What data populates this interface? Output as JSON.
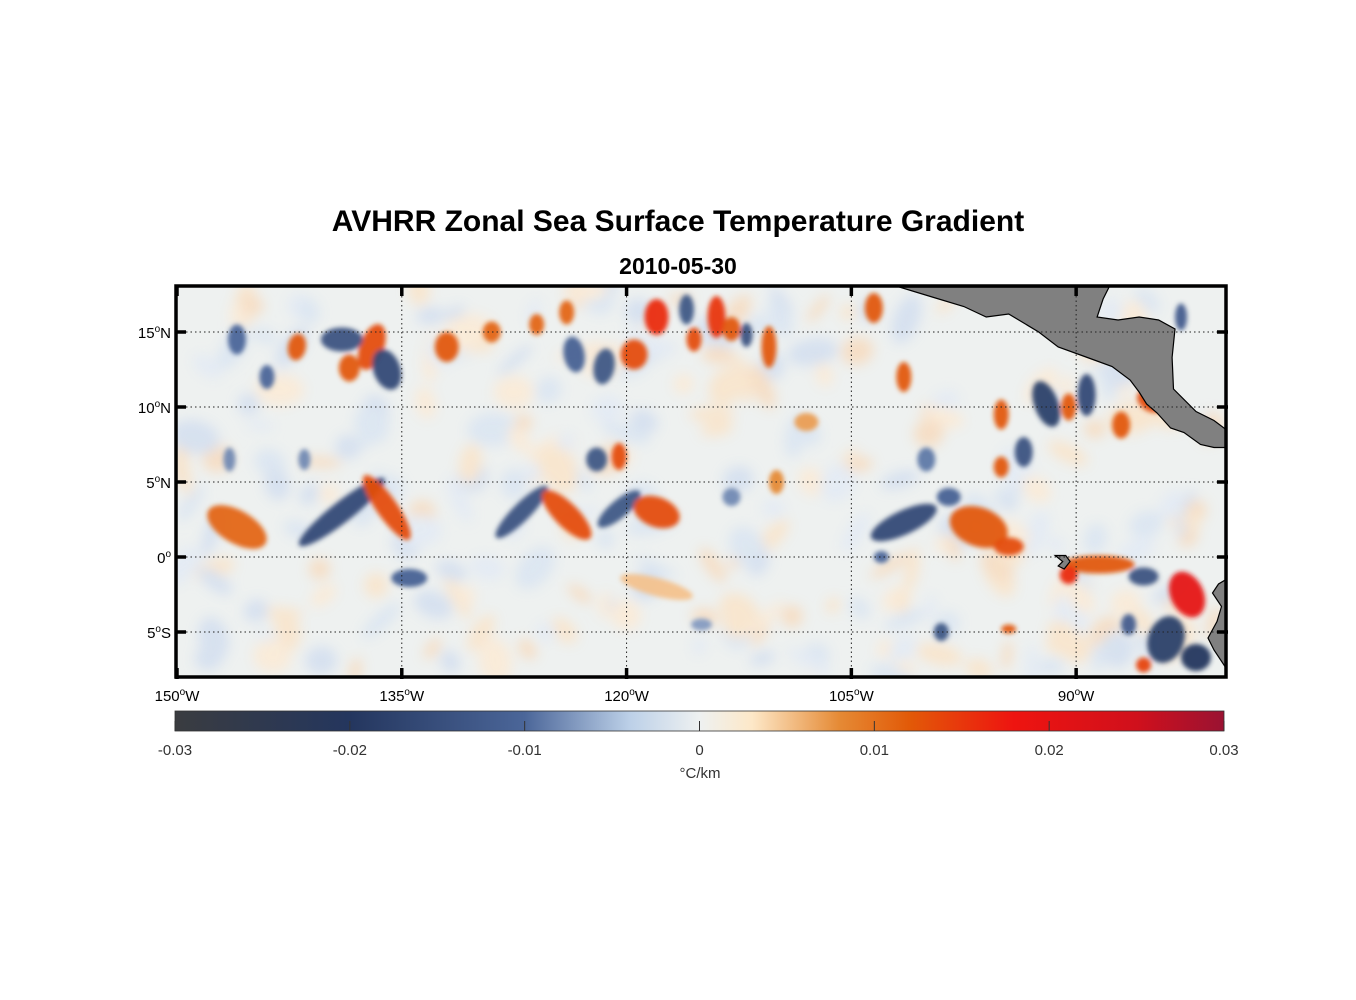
{
  "title": "AVHRR Zonal Sea Surface Temperature Gradient",
  "subtitle": "2010-05-30",
  "axes": {
    "lon_ticks": [
      {
        "value": -150,
        "num": "150",
        "hemi": "W"
      },
      {
        "value": -135,
        "num": "135",
        "hemi": "W"
      },
      {
        "value": -120,
        "num": "120",
        "hemi": "W"
      },
      {
        "value": -105,
        "num": "105",
        "hemi": "W"
      },
      {
        "value": -90,
        "num": "90",
        "hemi": "W"
      }
    ],
    "lat_ticks": [
      {
        "value": 15,
        "num": "15",
        "hemi": "N"
      },
      {
        "value": 10,
        "num": "10",
        "hemi": "N"
      },
      {
        "value": 5,
        "num": "5",
        "hemi": "N"
      },
      {
        "value": 0,
        "num": "0",
        "hemi": ""
      },
      {
        "value": -5,
        "num": "5",
        "hemi": "S"
      }
    ],
    "lon_range": [
      -150,
      -80
    ],
    "lat_range": [
      -8,
      18
    ],
    "grid": true
  },
  "colorbar": {
    "range": [
      -0.03,
      0.03
    ],
    "tick_values": [
      -0.03,
      -0.02,
      -0.01,
      0,
      0.01,
      0.02,
      0.03
    ],
    "tick_labels": [
      "-0.03",
      "-0.02",
      "-0.01",
      "0",
      "0.01",
      "0.02",
      "0.03"
    ],
    "unit_label": "°C/km",
    "colors": [
      {
        "v": -0.03,
        "c": "#3a3c40"
      },
      {
        "v": -0.02,
        "c": "#24365e"
      },
      {
        "v": -0.01,
        "c": "#4b6699"
      },
      {
        "v": -0.004,
        "c": "#bcd0e8"
      },
      {
        "v": 0,
        "c": "#eef1f1"
      },
      {
        "v": 0.003,
        "c": "#fde8c8"
      },
      {
        "v": 0.008,
        "c": "#e58a35"
      },
      {
        "v": 0.012,
        "c": "#e25a08"
      },
      {
        "v": 0.018,
        "c": "#ee1410"
      },
      {
        "v": 0.025,
        "c": "#d0101c"
      },
      {
        "v": 0.03,
        "c": "#9a1232"
      }
    ]
  },
  "land_color": "#808080",
  "features": [
    {
      "lon": -146,
      "lat": 2,
      "v": 0.011,
      "rx": 2.2,
      "ry": 1.1,
      "rot": 30
    },
    {
      "lon": -139,
      "lat": 3,
      "v": -0.016,
      "rx": 3.6,
      "ry": 0.7,
      "rot": -38
    },
    {
      "lon": -136,
      "lat": 3.3,
      "v": 0.013,
      "rx": 2.6,
      "ry": 0.7,
      "rot": 55
    },
    {
      "lon": -137,
      "lat": 14,
      "v": 0.013,
      "rx": 0.8,
      "ry": 1.6,
      "rot": 20
    },
    {
      "lon": -139,
      "lat": 14.5,
      "v": -0.014,
      "rx": 1.4,
      "ry": 0.8,
      "rot": 0
    },
    {
      "lon": -136,
      "lat": 12.5,
      "v": -0.016,
      "rx": 0.9,
      "ry": 1.4,
      "rot": -20
    },
    {
      "lon": -142,
      "lat": 14,
      "v": 0.012,
      "rx": 0.6,
      "ry": 0.9,
      "rot": 10
    },
    {
      "lon": -138.5,
      "lat": 12.6,
      "v": 0.012,
      "rx": 0.7,
      "ry": 0.9,
      "rot": 0
    },
    {
      "lon": -127,
      "lat": 3,
      "v": -0.014,
      "rx": 2.4,
      "ry": 0.6,
      "rot": -45
    },
    {
      "lon": -124,
      "lat": 2.8,
      "v": 0.013,
      "rx": 2.2,
      "ry": 0.8,
      "rot": 45
    },
    {
      "lon": -120.5,
      "lat": 3.2,
      "v": -0.013,
      "rx": 1.8,
      "ry": 0.6,
      "rot": -40
    },
    {
      "lon": -118,
      "lat": 3,
      "v": 0.013,
      "rx": 1.6,
      "ry": 1.0,
      "rot": 20
    },
    {
      "lon": -122,
      "lat": 6.5,
      "v": -0.013,
      "rx": 0.7,
      "ry": 0.8,
      "rot": 0
    },
    {
      "lon": -120.5,
      "lat": 6.7,
      "v": 0.013,
      "rx": 0.5,
      "ry": 0.9,
      "rot": 0
    },
    {
      "lon": -132,
      "lat": 14,
      "v": 0.012,
      "rx": 0.8,
      "ry": 1.0,
      "rot": 0
    },
    {
      "lon": -129,
      "lat": 15,
      "v": 0.011,
      "rx": 0.6,
      "ry": 0.7,
      "rot": 0
    },
    {
      "lon": -126,
      "lat": 15.5,
      "v": 0.011,
      "rx": 0.5,
      "ry": 0.7,
      "rot": 0
    },
    {
      "lon": -124,
      "lat": 16.3,
      "v": 0.011,
      "rx": 0.5,
      "ry": 0.8,
      "rot": 0
    },
    {
      "lon": -118,
      "lat": 16,
      "v": 0.016,
      "rx": 0.8,
      "ry": 1.2,
      "rot": 0
    },
    {
      "lon": -119.5,
      "lat": 13.5,
      "v": 0.013,
      "rx": 0.9,
      "ry": 1.0,
      "rot": 0
    },
    {
      "lon": -114,
      "lat": 16,
      "v": 0.015,
      "rx": 0.6,
      "ry": 1.4,
      "rot": 0
    },
    {
      "lon": -115.5,
      "lat": 14.5,
      "v": 0.013,
      "rx": 0.5,
      "ry": 0.8,
      "rot": 0
    },
    {
      "lon": -113,
      "lat": 15.2,
      "v": 0.012,
      "rx": 0.6,
      "ry": 0.8,
      "rot": 0
    },
    {
      "lon": -110.5,
      "lat": 14,
      "v": 0.012,
      "rx": 0.5,
      "ry": 1.4,
      "rot": 0
    },
    {
      "lon": -116,
      "lat": 16.5,
      "v": -0.013,
      "rx": 0.5,
      "ry": 1.0,
      "rot": 0
    },
    {
      "lon": -121.5,
      "lat": 12.7,
      "v": -0.013,
      "rx": 0.7,
      "ry": 1.2,
      "rot": 10
    },
    {
      "lon": -123.5,
      "lat": 13.5,
      "v": -0.011,
      "rx": 0.7,
      "ry": 1.2,
      "rot": -10
    },
    {
      "lon": -112,
      "lat": 14.8,
      "v": -0.014,
      "rx": 0.4,
      "ry": 0.8,
      "rot": 0
    },
    {
      "lon": -103.5,
      "lat": 16.6,
      "v": 0.012,
      "rx": 0.6,
      "ry": 1.0,
      "rot": 0
    },
    {
      "lon": -101.5,
      "lat": 12,
      "v": 0.012,
      "rx": 0.5,
      "ry": 1.0,
      "rot": 0
    },
    {
      "lon": -95,
      "lat": 9.5,
      "v": 0.012,
      "rx": 0.5,
      "ry": 1.0,
      "rot": 0
    },
    {
      "lon": -92,
      "lat": 10.2,
      "v": -0.018,
      "rx": 0.8,
      "ry": 1.6,
      "rot": -20
    },
    {
      "lon": -89.3,
      "lat": 10.8,
      "v": -0.016,
      "rx": 0.6,
      "ry": 1.4,
      "rot": 0
    },
    {
      "lon": -90.5,
      "lat": 10,
      "v": 0.012,
      "rx": 0.5,
      "ry": 0.9,
      "rot": 0
    },
    {
      "lon": -93.5,
      "lat": 7,
      "v": -0.014,
      "rx": 0.6,
      "ry": 1.0,
      "rot": 0
    },
    {
      "lon": -95,
      "lat": 6,
      "v": 0.012,
      "rx": 0.5,
      "ry": 0.7,
      "rot": 0
    },
    {
      "lon": -87,
      "lat": 8.8,
      "v": 0.012,
      "rx": 0.6,
      "ry": 0.9,
      "rot": 0
    },
    {
      "lon": -85,
      "lat": 10.4,
      "v": 0.013,
      "rx": 1.0,
      "ry": 0.7,
      "rot": 30
    },
    {
      "lon": -101.5,
      "lat": 2.3,
      "v": -0.016,
      "rx": 2.4,
      "ry": 0.8,
      "rot": -25
    },
    {
      "lon": -96.5,
      "lat": 2,
      "v": 0.012,
      "rx": 2.0,
      "ry": 1.3,
      "rot": 20
    },
    {
      "lon": -94.5,
      "lat": 0.7,
      "v": 0.013,
      "rx": 1.0,
      "ry": 0.6,
      "rot": 0
    },
    {
      "lon": -98.5,
      "lat": 4,
      "v": -0.011,
      "rx": 0.8,
      "ry": 0.6,
      "rot": 0
    },
    {
      "lon": -88.5,
      "lat": -0.5,
      "v": 0.012,
      "rx": 2.4,
      "ry": 0.6,
      "rot": 0
    },
    {
      "lon": -90.5,
      "lat": -1.2,
      "v": 0.016,
      "rx": 0.6,
      "ry": 0.6,
      "rot": 0
    },
    {
      "lon": -85.5,
      "lat": -1.3,
      "v": -0.014,
      "rx": 1.0,
      "ry": 0.6,
      "rot": 0
    },
    {
      "lon": -82.6,
      "lat": -2.5,
      "v": 0.02,
      "rx": 1.1,
      "ry": 1.6,
      "rot": -25
    },
    {
      "lon": -84,
      "lat": -5.5,
      "v": -0.018,
      "rx": 1.2,
      "ry": 1.6,
      "rot": 20
    },
    {
      "lon": -82,
      "lat": -6.7,
      "v": -0.02,
      "rx": 1.0,
      "ry": 0.9,
      "rot": 0
    },
    {
      "lon": -86.5,
      "lat": -4.5,
      "v": -0.012,
      "rx": 0.5,
      "ry": 0.7,
      "rot": 0
    },
    {
      "lon": -85.5,
      "lat": -7.2,
      "v": 0.014,
      "rx": 0.5,
      "ry": 0.5,
      "rot": 0
    },
    {
      "lon": -99,
      "lat": -5,
      "v": -0.013,
      "rx": 0.5,
      "ry": 0.6,
      "rot": 0
    },
    {
      "lon": -94.5,
      "lat": -4.8,
      "v": 0.012,
      "rx": 0.5,
      "ry": 0.3,
      "rot": 0
    },
    {
      "lon": -134.5,
      "lat": -1.4,
      "v": -0.011,
      "rx": 1.2,
      "ry": 0.6,
      "rot": 0
    },
    {
      "lon": -146,
      "lat": 14.5,
      "v": -0.01,
      "rx": 0.6,
      "ry": 1.0,
      "rot": 0
    },
    {
      "lon": -144,
      "lat": 12,
      "v": -0.01,
      "rx": 0.5,
      "ry": 0.8,
      "rot": 0
    },
    {
      "lon": -146.5,
      "lat": 6.5,
      "v": -0.008,
      "rx": 0.4,
      "ry": 0.8,
      "rot": 0
    },
    {
      "lon": -141.5,
      "lat": 6.5,
      "v": -0.008,
      "rx": 0.4,
      "ry": 0.7,
      "rot": 0
    },
    {
      "lon": -110,
      "lat": 5,
      "v": 0.008,
      "rx": 0.5,
      "ry": 0.8,
      "rot": 0
    },
    {
      "lon": -113,
      "lat": 4,
      "v": -0.008,
      "rx": 0.6,
      "ry": 0.6,
      "rot": 0
    },
    {
      "lon": -100,
      "lat": 6.5,
      "v": -0.009,
      "rx": 0.6,
      "ry": 0.8,
      "rot": 0
    },
    {
      "lon": -108,
      "lat": 9,
      "v": 0.007,
      "rx": 0.8,
      "ry": 0.6,
      "rot": 0
    },
    {
      "lon": -115,
      "lat": -4.5,
      "v": -0.007,
      "rx": 0.7,
      "ry": 0.4,
      "rot": 0
    },
    {
      "lon": -118,
      "lat": -2,
      "v": 0.005,
      "rx": 2.5,
      "ry": 0.6,
      "rot": 15
    },
    {
      "lon": -103,
      "lat": 0,
      "v": -0.01,
      "rx": 0.5,
      "ry": 0.4,
      "rot": 0
    },
    {
      "lon": -83,
      "lat": 16,
      "v": -0.012,
      "rx": 0.4,
      "ry": 0.9,
      "rot": 0
    }
  ],
  "land": [
    {
      "name": "central-america",
      "points": [
        [
          -101.8,
          18
        ],
        [
          -99.5,
          17.3
        ],
        [
          -97.5,
          16.7
        ],
        [
          -96,
          16
        ],
        [
          -94.5,
          16.2
        ],
        [
          -92.5,
          15
        ],
        [
          -91.2,
          14
        ],
        [
          -89.8,
          13.5
        ],
        [
          -88.7,
          13.1
        ],
        [
          -87.6,
          12.7
        ],
        [
          -86.4,
          11.8
        ],
        [
          -85.8,
          11
        ],
        [
          -85.3,
          10.2
        ],
        [
          -84.6,
          9.6
        ],
        [
          -83.7,
          8.6
        ],
        [
          -82.8,
          8.3
        ],
        [
          -81.7,
          7.5
        ],
        [
          -80.8,
          7.3
        ],
        [
          -80,
          7.3
        ],
        [
          -80,
          8.5
        ],
        [
          -80.8,
          9.1
        ],
        [
          -82,
          9.7
        ],
        [
          -83.5,
          11.2
        ],
        [
          -83.6,
          13.3
        ],
        [
          -83.4,
          15.2
        ],
        [
          -84.5,
          15.8
        ],
        [
          -85.8,
          16
        ],
        [
          -87.2,
          15.8
        ],
        [
          -88.6,
          16
        ],
        [
          -88.2,
          17.2
        ],
        [
          -87.8,
          18
        ]
      ]
    },
    {
      "name": "south-america",
      "points": [
        [
          -80,
          -1.5
        ],
        [
          -80.5,
          -1.8
        ],
        [
          -80.9,
          -2.4
        ],
        [
          -80.3,
          -3.3
        ],
        [
          -80.6,
          -4.3
        ],
        [
          -81.2,
          -5.4
        ],
        [
          -80.8,
          -6.2
        ],
        [
          -80,
          -7.4
        ],
        [
          -80,
          -1.5
        ]
      ]
    },
    {
      "name": "galapagos",
      "points": [
        [
          -91.4,
          0.1
        ],
        [
          -90.7,
          0.1
        ],
        [
          -90.4,
          -0.3
        ],
        [
          -90.8,
          -0.8
        ],
        [
          -91.2,
          -0.6
        ],
        [
          -90.9,
          -0.3
        ]
      ]
    }
  ]
}
